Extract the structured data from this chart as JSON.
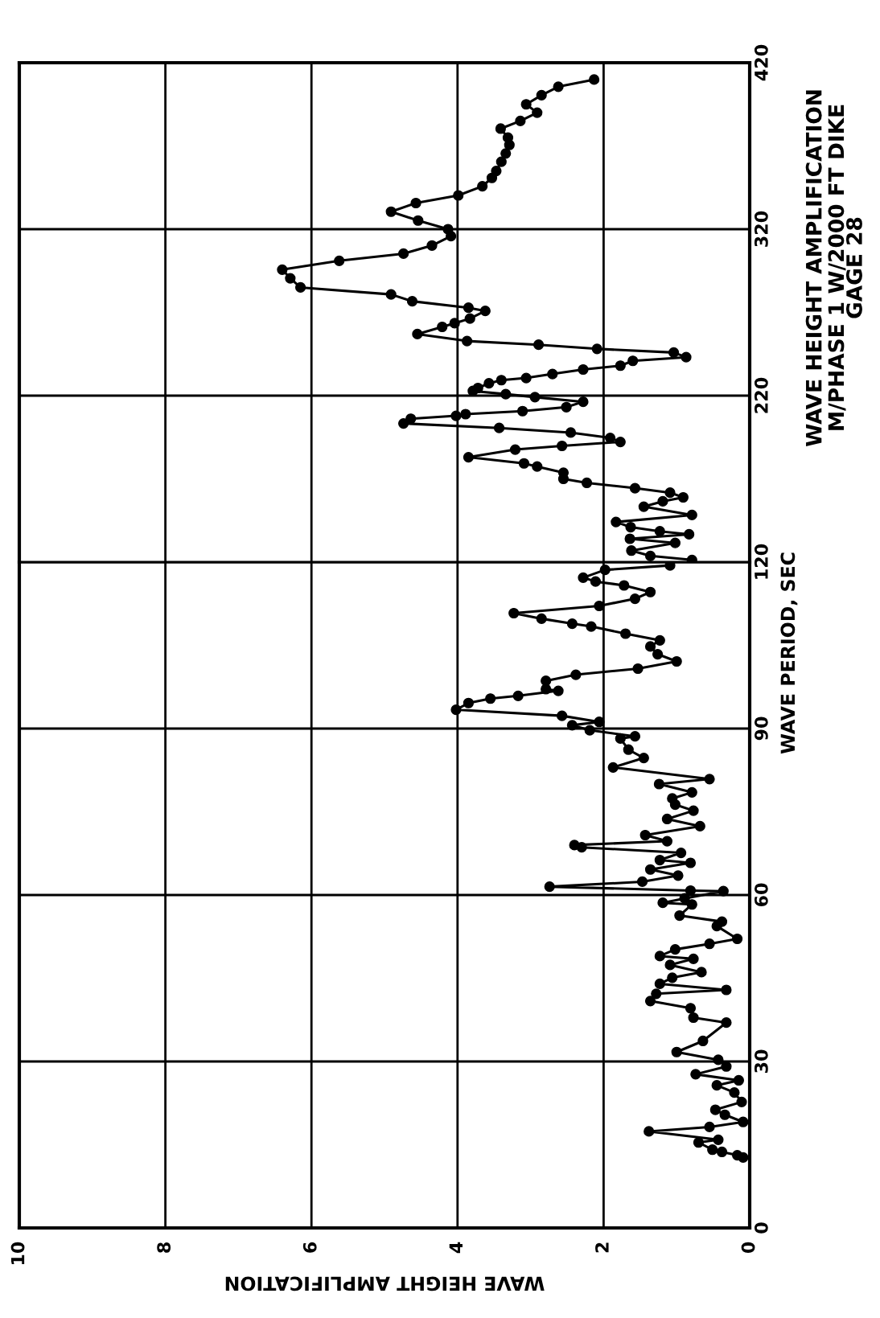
{
  "chart_data": [
    {
      "type": "line",
      "annotations": [
        "WAVE HEIGHT AMPLIFICATION",
        "M/PHASE 1 W/2000 FT DIKE\nGAGE 28"
      ],
      "x": [
        0.79,
        1.36,
        1.62,
        1.02,
        1.64,
        0.83,
        1.23,
        1.63,
        1.83,
        0.79,
        1.45,
        1.19,
        0.91,
        1.09,
        1.57,
        2.23,
        2.55,
        2.55,
        2.91,
        3.09,
        3.85,
        3.21,
        2.57,
        1.77,
        1.91,
        2.45,
        3.43,
        4.74,
        4.64,
        4.02,
        3.89,
        3.11,
        2.51,
        2.28,
        2.94,
        3.34,
        3.79,
        3.72,
        3.57,
        3.4,
        3.06,
        2.7,
        2.28,
        1.77,
        1.6,
        0.87,
        1.04,
        2.09,
        2.89,
        3.87,
        4.55,
        4.21,
        4.04,
        3.83,
        3.62,
        3.85,
        4.62,
        4.91,
        6.15,
        6.29,
        6.4,
        5.62,
        4.74,
        4.35,
        4.09,
        4.13,
        4.54,
        4.91,
        4.57,
        3.99,
        3.66,
        3.53,
        3.47,
        3.4,
        3.34,
        3.29,
        3.31,
        3.41,
        3.14,
        2.91,
        3.06,
        2.85,
        2.62,
        2.13
      ],
      "series": [
        {
          "color": "#000000",
          "values": [
            121.3,
            123.7,
            126.9,
            131.5,
            134.0,
            136.7,
            138.5,
            141.0,
            144.1,
            148.3,
            153.3,
            156.5,
            158.9,
            161.7,
            164.4,
            167.6,
            170.0,
            173.7,
            177.4,
            179.3,
            183.0,
            187.6,
            189.8,
            192.2,
            194.6,
            197.8,
            200.6,
            203.3,
            206.1,
            207.9,
            208.9,
            210.7,
            213.1,
            216.3,
            219.1,
            220.9,
            222.8,
            224.6,
            227.4,
            229.3,
            230.6,
            233.0,
            235.7,
            238.0,
            240.9,
            243.1,
            245.9,
            248.1,
            250.6,
            252.8,
            257.0,
            261.3,
            263.5,
            266.3,
            270.9,
            272.8,
            276.7,
            280.8,
            285.0,
            290.5,
            295.7,
            301.0,
            305.3,
            310.2,
            315.8,
            320.0,
            325.2,
            330.5,
            335.7,
            340.3,
            345.8,
            350.8,
            355.0,
            360.5,
            365.5,
            370.6,
            375.0,
            380.4,
            385.0,
            390.0,
            395.0,
            400.5,
            405.6,
            409.9
          ]
        }
      ],
      "xlim": [
        10,
        0
      ],
      "xticks": [
        10,
        8,
        6,
        4,
        2,
        0
      ],
      "ylim": [
        120,
        420
      ],
      "yticks": [
        220,
        320,
        420
      ],
      "tick_labels": "y",
      "grid": true,
      "marker": "circle",
      "line_style": "solid"
    },
    {
      "type": "line",
      "xlabel": "WAVE HEIGHT AMPLIFICATION",
      "ylabel": "WAVE PERIOD, SEC",
      "x": [
        0.09,
        0.17,
        0.38,
        0.51,
        0.7,
        0.43,
        1.38,
        0.55,
        0.09,
        0.34,
        0.47,
        0.11,
        0.21,
        0.45,
        0.15,
        0.74,
        0.32,
        0.43,
        1.0,
        0.64,
        0.32,
        0.77,
        0.81,
        1.36,
        1.28,
        0.32,
        1.23,
        1.06,
        0.66,
        1.09,
        0.77,
        1.23,
        1.02,
        0.55,
        0.17,
        0.45,
        0.38,
        0.96,
        0.79,
        1.19,
        0.89,
        0.36,
        0.81,
        2.74,
        1.47,
        0.98,
        1.36,
        0.81,
        1.23,
        0.94,
        2.3,
        2.4,
        1.13,
        1.43,
        0.68,
        1.13,
        0.77,
        1.02,
        1.06,
        0.79,
        1.24,
        0.55,
        1.87,
        1.45,
        1.66,
        1.77,
        1.57,
        2.19,
        2.43,
        2.06,
        2.57,
        4.02,
        3.85,
        3.55,
        3.17,
        2.62,
        2.79,
        2.79,
        2.38,
        1.53,
        1.0,
        1.26,
        1.36,
        1.23,
        1.7,
        2.17,
        2.43,
        2.85,
        3.23,
        2.06,
        1.57,
        1.36,
        1.72,
        2.11,
        2.28,
        1.98,
        1.09
      ],
      "series": [
        {
          "color": "#000000",
          "values": [
            12.7,
            13.1,
            13.7,
            14.1,
            15.4,
            15.9,
            17.4,
            18.2,
            19.1,
            20.4,
            21.3,
            22.7,
            24.4,
            25.7,
            26.6,
            27.7,
            29.1,
            30.3,
            31.7,
            33.7,
            37.0,
            37.9,
            39.6,
            40.9,
            42.2,
            42.9,
            44.0,
            45.1,
            46.1,
            47.4,
            48.5,
            49.0,
            50.2,
            51.2,
            52.1,
            54.4,
            55.2,
            56.3,
            58.3,
            58.6,
            59.4,
            60.7,
            60.8,
            61.5,
            62.4,
            63.5,
            64.6,
            65.8,
            66.3,
            67.6,
            68.6,
            69.0,
            69.7,
            70.8,
            72.4,
            73.7,
            75.2,
            76.3,
            77.4,
            78.5,
            80.0,
            80.9,
            83.0,
            84.7,
            86.2,
            88.2,
            88.6,
            89.7,
            90.6,
            91.2,
            92.3,
            93.4,
            94.6,
            95.4,
            95.9,
            96.8,
            97.1,
            98.6,
            99.7,
            100.8,
            102.1,
            103.4,
            104.8,
            105.9,
            107.1,
            108.4,
            108.9,
            109.8,
            110.8,
            112.1,
            113.4,
            114.6,
            115.8,
            116.5,
            117.2,
            118.6,
            119.4
          ]
        }
      ],
      "xlim": [
        10,
        0
      ],
      "xticks": [
        10,
        8,
        6,
        4,
        2,
        0
      ],
      "ylim": [
        0,
        120
      ],
      "yticks": [
        0,
        30,
        60,
        90,
        120
      ],
      "grid": true,
      "marker": "circle",
      "line_style": "solid"
    }
  ]
}
